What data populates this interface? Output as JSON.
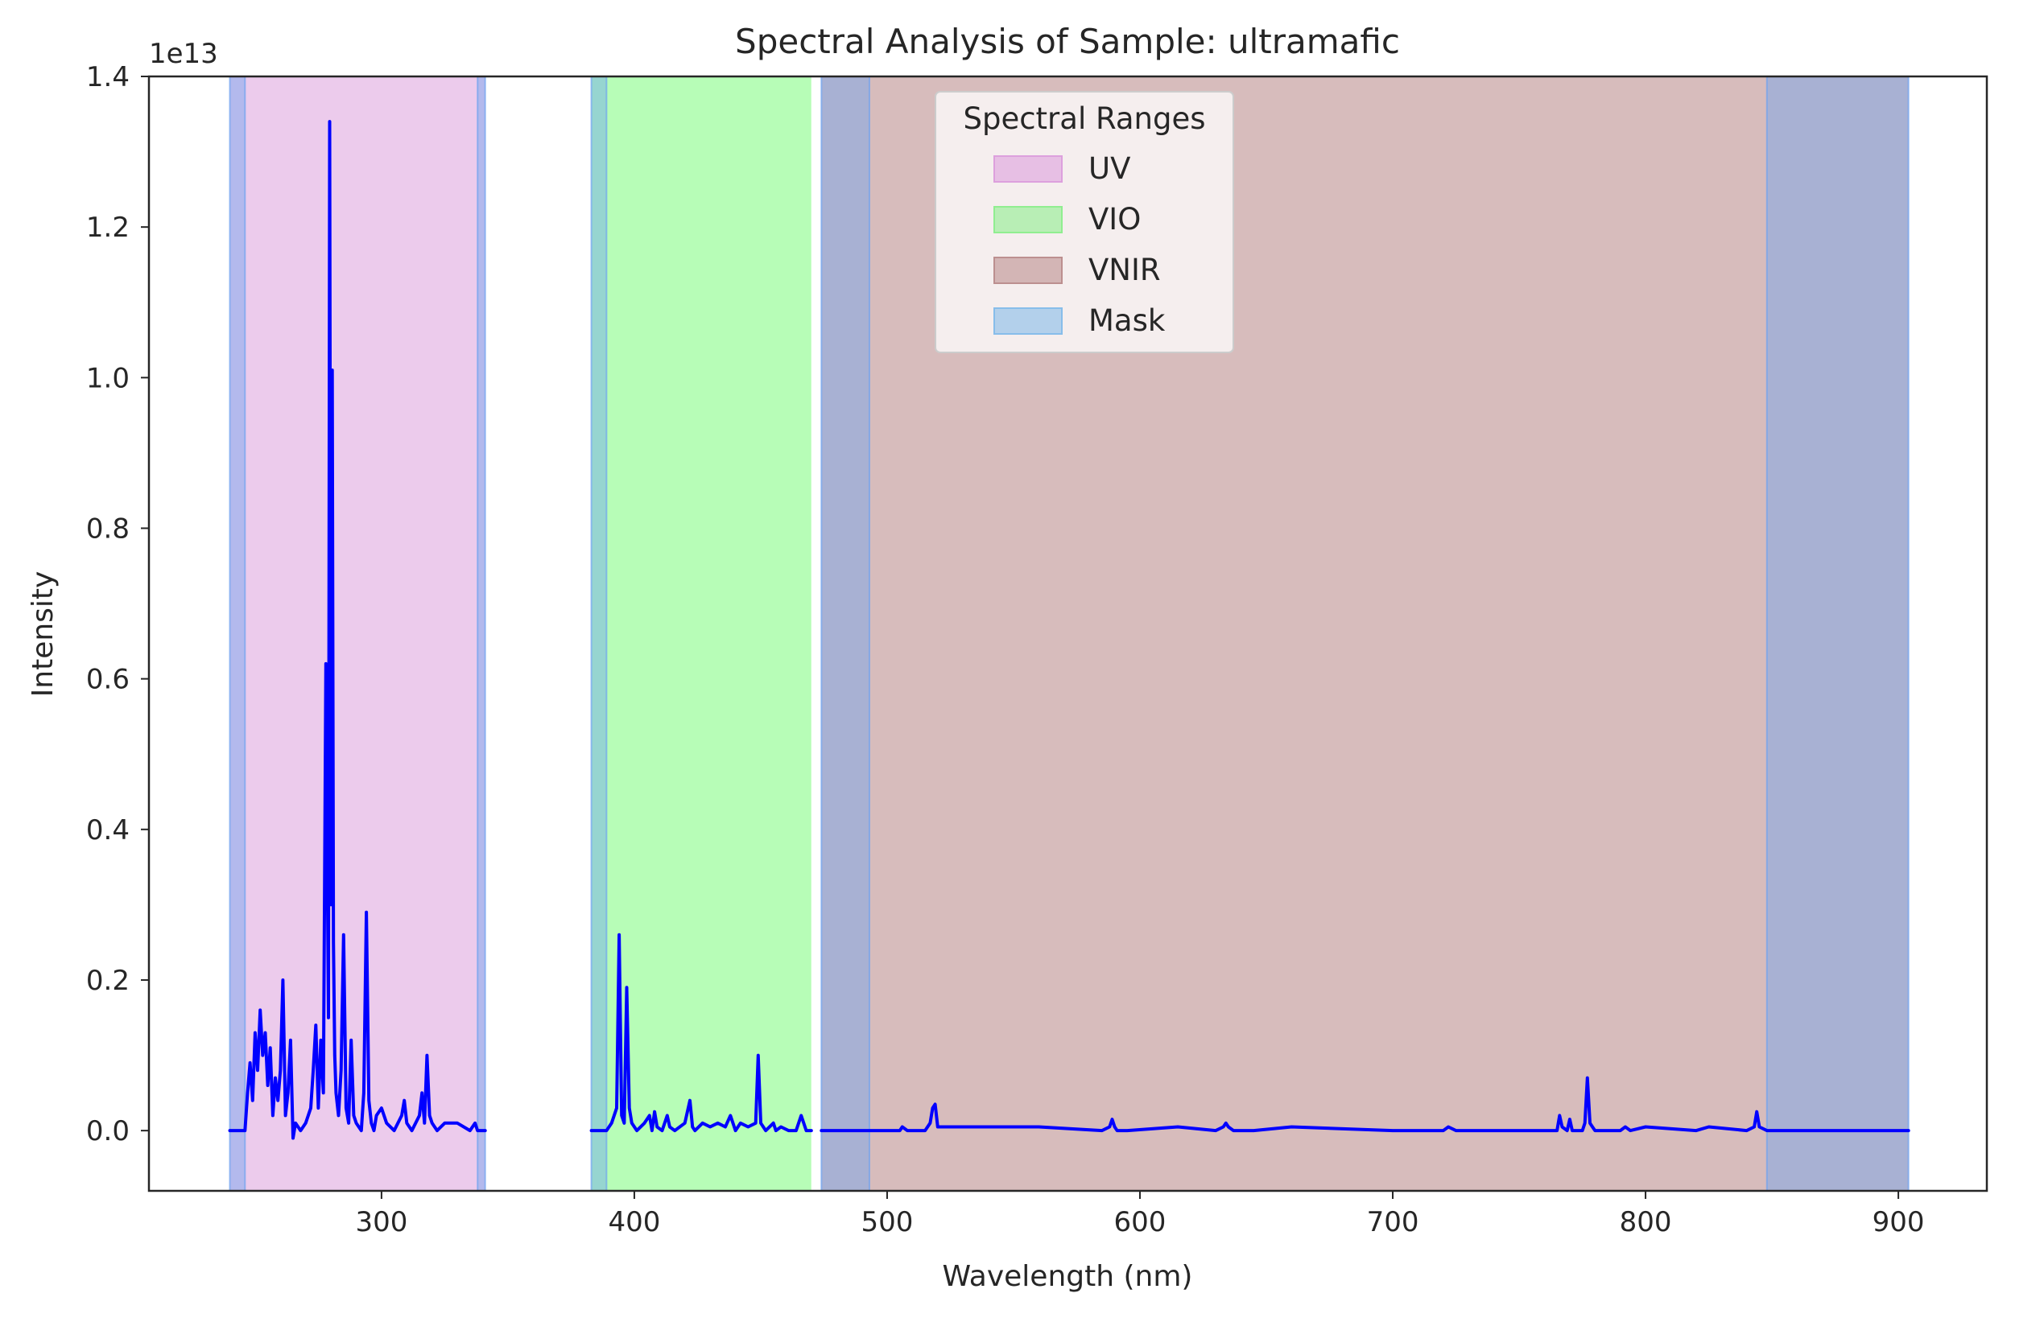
{
  "chart_data": {
    "type": "line",
    "title": "Spectral Analysis of Sample: ultramafic",
    "xlabel": "Wavelength (nm)",
    "ylabel": "Intensity",
    "y_offset_label": "1e13",
    "xlim": [
      208,
      935
    ],
    "ylim": [
      -0.08,
      1.4
    ],
    "x_ticks": [
      300,
      400,
      500,
      600,
      700,
      800,
      900
    ],
    "x_tick_labels": [
      "300",
      "400",
      "500",
      "600",
      "700",
      "800",
      "900"
    ],
    "y_ticks": [
      0.0,
      0.2,
      0.4,
      0.6,
      0.8,
      1.0,
      1.2,
      1.4
    ],
    "y_tick_labels": [
      "0.0",
      "0.2",
      "0.4",
      "0.6",
      "0.8",
      "1.0",
      "1.2",
      "1.4"
    ],
    "grid": false,
    "legend": {
      "title": "Spectral Ranges",
      "placement": "upper-center",
      "entries": [
        {
          "label": "UV",
          "color": "#dda0dd"
        },
        {
          "label": "VIO",
          "color": "#90ee90"
        },
        {
          "label": "VNIR",
          "color": "#bc8f8f"
        },
        {
          "label": "Mask",
          "color": "#87bdea"
        }
      ]
    },
    "spans": [
      {
        "name": "UV",
        "x": [
          240,
          341
        ],
        "color": "#dda0dd",
        "alpha": 0.55
      },
      {
        "name": "VIO",
        "x": [
          383,
          470
        ],
        "color": "#7cfc7c",
        "alpha": 0.55
      },
      {
        "name": "VNIR",
        "x": [
          474,
          904
        ],
        "color": "#bc8f8f",
        "alpha": 0.6
      }
    ],
    "mask_spans": [
      {
        "x": [
          240,
          246
        ]
      },
      {
        "x": [
          338,
          341
        ]
      },
      {
        "x": [
          383,
          389
        ]
      },
      {
        "x": [
          474,
          493
        ]
      },
      {
        "x": [
          848,
          904
        ]
      }
    ],
    "mask_color": "#6fa3f0",
    "series": [
      {
        "name": "",
        "color": "#0000ff",
        "segments": [
          {
            "x": [
              240,
              246,
              247,
              248,
              249,
              250,
              251,
              252,
              253,
              254,
              255,
              256,
              257,
              258,
              259,
              260,
              261,
              262,
              263,
              264,
              265,
              266,
              268,
              270,
              272,
              273,
              274,
              275,
              276,
              277,
              278,
              279,
              279.5,
              280,
              280.5,
              281,
              281.5,
              282,
              283,
              284,
              285,
              286,
              287,
              288,
              289,
              290,
              292,
              293,
              294,
              295,
              296,
              297,
              298,
              300,
              302,
              305,
              308,
              309,
              310,
              312,
              315,
              316,
              317,
              318,
              319,
              320,
              322,
              325,
              330,
              335,
              337,
              338,
              339,
              341
            ],
            "y": [
              0.0,
              0.0,
              0.05,
              0.09,
              0.04,
              0.13,
              0.08,
              0.16,
              0.1,
              0.13,
              0.06,
              0.11,
              0.02,
              0.07,
              0.04,
              0.08,
              0.2,
              0.02,
              0.05,
              0.12,
              -0.01,
              0.01,
              0.0,
              0.01,
              0.03,
              0.08,
              0.14,
              0.03,
              0.12,
              0.05,
              0.62,
              0.15,
              1.34,
              0.3,
              1.01,
              0.25,
              0.1,
              0.05,
              0.02,
              0.08,
              0.26,
              0.03,
              0.01,
              0.12,
              0.02,
              0.01,
              0.0,
              0.05,
              0.29,
              0.04,
              0.01,
              0.0,
              0.02,
              0.03,
              0.01,
              0.0,
              0.02,
              0.04,
              0.01,
              0.0,
              0.02,
              0.05,
              0.01,
              0.1,
              0.02,
              0.01,
              0.0,
              0.01,
              0.01,
              0.0,
              0.01,
              0.0,
              0.0,
              0.0
            ]
          },
          {
            "x": [
              383,
              389,
              391,
              393,
              394,
              395,
              396,
              397,
              398,
              399,
              401,
              404,
              406,
              407,
              408,
              409,
              411,
              413,
              414,
              416,
              420,
              422,
              423,
              424,
              427,
              430,
              433,
              436,
              438,
              440,
              442,
              445,
              448,
              449,
              450,
              452,
              455,
              456,
              458,
              461,
              464,
              466,
              468,
              470
            ],
            "y": [
              0.0,
              0.0,
              0.01,
              0.03,
              0.26,
              0.02,
              0.01,
              0.19,
              0.03,
              0.01,
              0.0,
              0.01,
              0.02,
              0.0,
              0.025,
              0.005,
              0.0,
              0.02,
              0.005,
              0.0,
              0.01,
              0.04,
              0.005,
              0.0,
              0.01,
              0.005,
              0.01,
              0.005,
              0.02,
              0.0,
              0.01,
              0.005,
              0.01,
              0.1,
              0.01,
              0.0,
              0.01,
              0.0,
              0.005,
              0.0,
              0.0,
              0.02,
              0.0,
              0.0
            ]
          },
          {
            "x": [
              474,
              500,
              505,
              506,
              508,
              515,
              517,
              518,
              519,
              520,
              525,
              560,
              585,
              588,
              589,
              590,
              591,
              595,
              615,
              630,
              633,
              634,
              635,
              637,
              645,
              660,
              700,
              720,
              722,
              725,
              740,
              765,
              766,
              767,
              769,
              770,
              771,
              775,
              776,
              777,
              778,
              779,
              780,
              790,
              792,
              794,
              800,
              820,
              825,
              840,
              843,
              844,
              845,
              848,
              904
            ],
            "y": [
              0.0,
              0.0,
              0.0,
              0.005,
              0.0,
              0.0,
              0.01,
              0.03,
              0.035,
              0.005,
              0.005,
              0.005,
              0.0,
              0.005,
              0.015,
              0.005,
              0.0,
              0.0,
              0.005,
              0.0,
              0.005,
              0.01,
              0.005,
              0.0,
              0.0,
              0.005,
              0.0,
              0.0,
              0.005,
              0.0,
              0.0,
              0.0,
              0.02,
              0.005,
              0.0,
              0.015,
              0.0,
              0.0,
              0.01,
              0.07,
              0.01,
              0.005,
              0.0,
              0.0,
              0.005,
              0.0,
              0.005,
              0.0,
              0.005,
              0.0,
              0.005,
              0.025,
              0.005,
              0.0,
              0.0
            ]
          }
        ]
      }
    ]
  }
}
